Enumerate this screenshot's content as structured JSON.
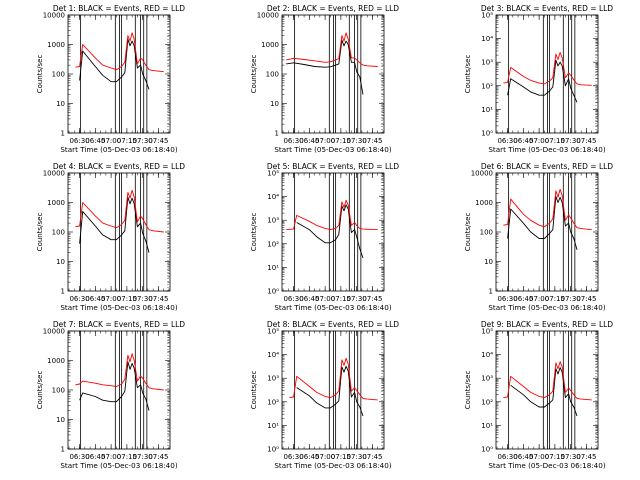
{
  "figure": {
    "xlabel": "Start Time (05-Dec-03 06:18:40)",
    "ylabel": "Counts/sec",
    "x_ticks": [
      "06:30",
      "06:45",
      "07:00",
      "07:15",
      "07:30",
      "07:45"
    ]
  },
  "colors": {
    "events": "#000000",
    "lld": "#ff0000",
    "axes": "#000000"
  },
  "chart_data": [
    {
      "type": "line",
      "title": "Det 1: BLACK = Events, RED = LLD",
      "y_ticks": [
        "1",
        "10",
        "100",
        "1000",
        "10000"
      ],
      "ylim": [
        1,
        10000
      ],
      "scale": "log",
      "x": [
        "06:26",
        "06:30",
        "06:33",
        "06:45",
        "06:52",
        "07:00",
        "07:05",
        "07:10",
        "07:13",
        "07:16",
        "07:18",
        "07:20",
        "07:22",
        "07:25",
        "07:28",
        "07:30",
        "07:33",
        "07:36",
        "07:40",
        "07:50"
      ],
      "series": [
        {
          "name": "Events",
          "values": [
            null,
            60,
            600,
            180,
            90,
            55,
            55,
            80,
            110,
            1500,
            900,
            1300,
            900,
            160,
            200,
            100,
            60,
            30,
            null,
            null
          ]
        },
        {
          "name": "LLD",
          "values": [
            170,
            180,
            1000,
            350,
            200,
            160,
            140,
            180,
            250,
            2000,
            1300,
            2500,
            1500,
            220,
            350,
            300,
            200,
            140,
            130,
            120
          ]
        }
      ]
    },
    {
      "type": "line",
      "title": "Det 2: BLACK = Events, RED = LLD",
      "y_ticks": [
        "1",
        "10",
        "100",
        "1000",
        "10000"
      ],
      "ylim": [
        1,
        10000
      ],
      "scale": "log",
      "x": [
        "06:23",
        "06:30",
        "06:40",
        "06:50",
        "07:00",
        "07:05",
        "07:10",
        "07:13",
        "07:16",
        "07:18",
        "07:20",
        "07:22",
        "07:25",
        "07:28",
        "07:30",
        "07:33",
        "07:36",
        "07:40",
        "07:50"
      ],
      "series": [
        {
          "name": "Events",
          "values": [
            220,
            240,
            210,
            180,
            170,
            175,
            200,
            220,
            1400,
            900,
            1300,
            1000,
            250,
            250,
            120,
            80,
            20,
            null,
            null
          ]
        },
        {
          "name": "LLD",
          "values": [
            300,
            340,
            310,
            280,
            250,
            260,
            300,
            330,
            2000,
            1300,
            2500,
            1500,
            350,
            350,
            300,
            240,
            200,
            190,
            180
          ]
        }
      ]
    },
    {
      "type": "line",
      "title": "Det 3: BLACK = Events, RED = LLD",
      "y_ticks": [
        "10⁰",
        "10¹",
        "10²",
        "10³",
        "10⁴",
        "10⁵"
      ],
      "ylim": [
        1,
        100000
      ],
      "scale": "log",
      "x": [
        "06:26",
        "06:30",
        "06:33",
        "06:45",
        "06:52",
        "07:00",
        "07:05",
        "07:10",
        "07:13",
        "07:16",
        "07:18",
        "07:20",
        "07:22",
        "07:25",
        "07:28",
        "07:30",
        "07:33",
        "07:36",
        "07:40",
        "07:50"
      ],
      "series": [
        {
          "name": "Events",
          "values": [
            null,
            40,
            200,
            90,
            55,
            40,
            40,
            60,
            90,
            1200,
            700,
            1000,
            700,
            100,
            200,
            80,
            40,
            20,
            null,
            null
          ]
        },
        {
          "name": "LLD",
          "values": [
            130,
            140,
            600,
            250,
            170,
            130,
            120,
            160,
            220,
            2200,
            1300,
            2600,
            1500,
            220,
            350,
            280,
            180,
            120,
            110,
            105
          ]
        }
      ]
    },
    {
      "type": "line",
      "title": "Det 4: BLACK = Events, RED = LLD",
      "y_ticks": [
        "1",
        "10",
        "100",
        "1000",
        "10000"
      ],
      "ylim": [
        1,
        10000
      ],
      "scale": "log",
      "x": [
        "06:26",
        "06:30",
        "06:33",
        "06:45",
        "06:52",
        "07:00",
        "07:05",
        "07:10",
        "07:13",
        "07:16",
        "07:18",
        "07:20",
        "07:22",
        "07:25",
        "07:28",
        "07:30",
        "07:33",
        "07:36",
        "07:40",
        "07:50"
      ],
      "series": [
        {
          "name": "Events",
          "values": [
            null,
            40,
            500,
            160,
            80,
            55,
            55,
            80,
            110,
            1500,
            900,
            1400,
            900,
            150,
            200,
            90,
            50,
            20,
            null,
            null
          ]
        },
        {
          "name": "LLD",
          "values": [
            150,
            160,
            1000,
            350,
            200,
            160,
            140,
            180,
            250,
            2200,
            1400,
            2600,
            1500,
            220,
            350,
            280,
            180,
            120,
            110,
            100
          ]
        }
      ]
    },
    {
      "type": "line",
      "title": "Det 5: BLACK = Events, RED = LLD",
      "y_ticks": [
        "10⁰",
        "10¹",
        "10²",
        "10³",
        "10⁴",
        "10⁵"
      ],
      "ylim": [
        1,
        100000
      ],
      "scale": "log",
      "x": [
        "06:23",
        "06:30",
        "06:33",
        "06:45",
        "06:52",
        "07:00",
        "07:05",
        "07:10",
        "07:13",
        "07:16",
        "07:18",
        "07:20",
        "07:22",
        "07:25",
        "07:28",
        "07:30",
        "07:33",
        "07:36",
        "07:40",
        "07:50"
      ],
      "series": [
        {
          "name": "Events",
          "values": [
            null,
            null,
            800,
            400,
            200,
            110,
            110,
            150,
            250,
            4000,
            2500,
            4500,
            3000,
            300,
            400,
            200,
            60,
            25,
            null,
            null
          ]
        },
        {
          "name": "LLD",
          "values": [
            400,
            420,
            1600,
            900,
            600,
            450,
            400,
            450,
            600,
            6000,
            3500,
            7000,
            4500,
            600,
            800,
            600,
            450,
            420,
            410,
            400
          ]
        }
      ]
    },
    {
      "type": "line",
      "title": "Det 6: BLACK = Events, RED = LLD",
      "y_ticks": [
        "1",
        "10",
        "100",
        "1000",
        "10000"
      ],
      "ylim": [
        1,
        10000
      ],
      "scale": "log",
      "x": [
        "06:26",
        "06:30",
        "06:33",
        "06:45",
        "06:52",
        "07:00",
        "07:05",
        "07:10",
        "07:13",
        "07:16",
        "07:18",
        "07:20",
        "07:22",
        "07:25",
        "07:28",
        "07:30",
        "07:33",
        "07:36",
        "07:40",
        "07:50"
      ],
      "series": [
        {
          "name": "Events",
          "values": [
            null,
            60,
            600,
            200,
            100,
            60,
            60,
            90,
            120,
            1600,
            1000,
            1500,
            1000,
            160,
            200,
            100,
            60,
            25,
            null,
            null
          ]
        },
        {
          "name": "LLD",
          "values": [
            170,
            180,
            1300,
            400,
            250,
            170,
            150,
            200,
            280,
            2500,
            1500,
            2800,
            1700,
            250,
            380,
            300,
            200,
            140,
            130,
            120
          ]
        }
      ]
    },
    {
      "type": "line",
      "title": "Det 7: BLACK = Events, RED = LLD",
      "y_ticks": [
        "1",
        "10",
        "100",
        "1000",
        "10000"
      ],
      "ylim": [
        1,
        10000
      ],
      "scale": "log",
      "x": [
        "06:26",
        "06:30",
        "06:33",
        "06:45",
        "06:52",
        "07:00",
        "07:05",
        "07:10",
        "07:13",
        "07:16",
        "07:18",
        "07:20",
        "07:22",
        "07:25",
        "07:28",
        "07:30",
        "07:33",
        "07:36",
        "07:40",
        "07:50"
      ],
      "series": [
        {
          "name": "Events",
          "values": [
            null,
            45,
            80,
            60,
            45,
            40,
            40,
            60,
            90,
            900,
            500,
            800,
            550,
            120,
            150,
            80,
            50,
            20,
            null,
            null
          ]
        },
        {
          "name": "LLD",
          "values": [
            150,
            160,
            200,
            170,
            150,
            140,
            130,
            160,
            230,
            1500,
            900,
            1700,
            1000,
            200,
            300,
            250,
            170,
            120,
            110,
            100
          ]
        }
      ]
    },
    {
      "type": "line",
      "title": "Det 8: BLACK = Events, RED = LLD",
      "y_ticks": [
        "10⁰",
        "10¹",
        "10²",
        "10³",
        "10⁴",
        "10⁵"
      ],
      "ylim": [
        1,
        100000
      ],
      "scale": "log",
      "x": [
        "06:26",
        "06:30",
        "06:33",
        "06:45",
        "06:52",
        "07:00",
        "07:05",
        "07:10",
        "07:13",
        "07:16",
        "07:18",
        "07:20",
        "07:22",
        "07:25",
        "07:28",
        "07:30",
        "07:33",
        "07:36",
        "07:40",
        "07:50"
      ],
      "series": [
        {
          "name": "Events",
          "values": [
            null,
            null,
            400,
            180,
            90,
            55,
            55,
            80,
            110,
            3000,
            1800,
            3200,
            2000,
            160,
            250,
            100,
            60,
            25,
            null,
            null
          ]
        },
        {
          "name": "LLD",
          "values": [
            150,
            160,
            1200,
            450,
            250,
            170,
            150,
            200,
            280,
            6000,
            3500,
            7000,
            4000,
            280,
            400,
            300,
            200,
            140,
            130,
            120
          ]
        }
      ]
    },
    {
      "type": "line",
      "title": "Det 9: BLACK = Events, RED = LLD",
      "y_ticks": [
        "10⁰",
        "10¹",
        "10²",
        "10³",
        "10⁴",
        "10⁵"
      ],
      "ylim": [
        1,
        100000
      ],
      "scale": "log",
      "x": [
        "06:26",
        "06:30",
        "06:33",
        "06:45",
        "06:52",
        "07:00",
        "07:05",
        "07:10",
        "07:13",
        "07:16",
        "07:18",
        "07:20",
        "07:22",
        "07:25",
        "07:28",
        "07:30",
        "07:33",
        "07:36",
        "07:40",
        "07:50"
      ],
      "series": [
        {
          "name": "Events",
          "values": [
            null,
            null,
            500,
            200,
            100,
            60,
            60,
            90,
            120,
            2500,
            1500,
            2800,
            1800,
            150,
            220,
            100,
            60,
            25,
            null,
            null
          ]
        },
        {
          "name": "LLD",
          "values": [
            150,
            160,
            1200,
            450,
            250,
            170,
            150,
            200,
            280,
            4500,
            2500,
            5000,
            3000,
            250,
            380,
            300,
            200,
            140,
            130,
            120
          ]
        }
      ]
    }
  ]
}
